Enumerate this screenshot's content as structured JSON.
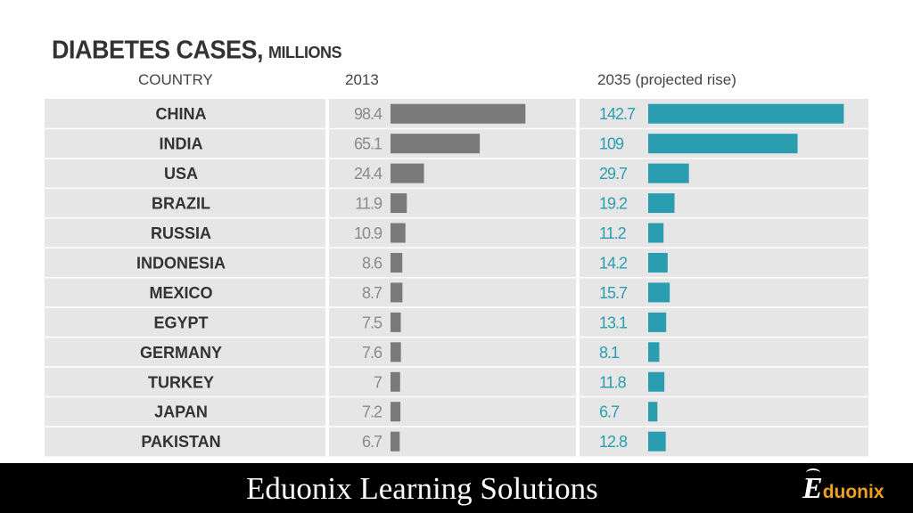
{
  "chart_data": {
    "type": "bar",
    "title": "DIABETES CASES,",
    "title_unit": "MILLIONS",
    "columns": {
      "country": "COUNTRY",
      "y2013": "2013",
      "y2035": "2035 (projected rise)"
    },
    "categories": [
      "CHINA",
      "INDIA",
      "USA",
      "BRAZIL",
      "RUSSIA",
      "INDONESIA",
      "MEXICO",
      "EGYPT",
      "GERMANY",
      "TURKEY",
      "JAPAN",
      "PAKISTAN"
    ],
    "series": [
      {
        "name": "2013",
        "values": [
          98.4,
          65.1,
          24.4,
          11.9,
          10.9,
          8.6,
          8.7,
          7.5,
          7.6,
          7,
          7.2,
          6.7
        ],
        "labels": [
          "98.4",
          "65.1",
          "24.4",
          "11.9",
          "10.9",
          "8.6",
          "8.7",
          "7.5",
          "7.6",
          "7",
          "7.2",
          "6.7"
        ]
      },
      {
        "name": "2035 (projected rise)",
        "values": [
          142.7,
          109,
          29.7,
          19.2,
          11.2,
          14.2,
          15.7,
          13.1,
          8.1,
          11.8,
          6.7,
          12.8
        ],
        "labels": [
          "142.7",
          "109",
          "29.7",
          "19.2",
          "11.2",
          "14.2",
          "15.7",
          "13.1",
          "8.1",
          "11.8",
          "6.7",
          "12.8"
        ]
      }
    ],
    "colors": {
      "y2013": "#7a7a7a",
      "y2035": "#2a9db1",
      "row_bg": "#e6e6e6",
      "country_text": "#333333",
      "value_2013_text": "#8a8a8a"
    }
  },
  "footer": {
    "text": "Eduonix Learning Solutions",
    "logo_initial": "E",
    "logo_rest": "duonix"
  }
}
